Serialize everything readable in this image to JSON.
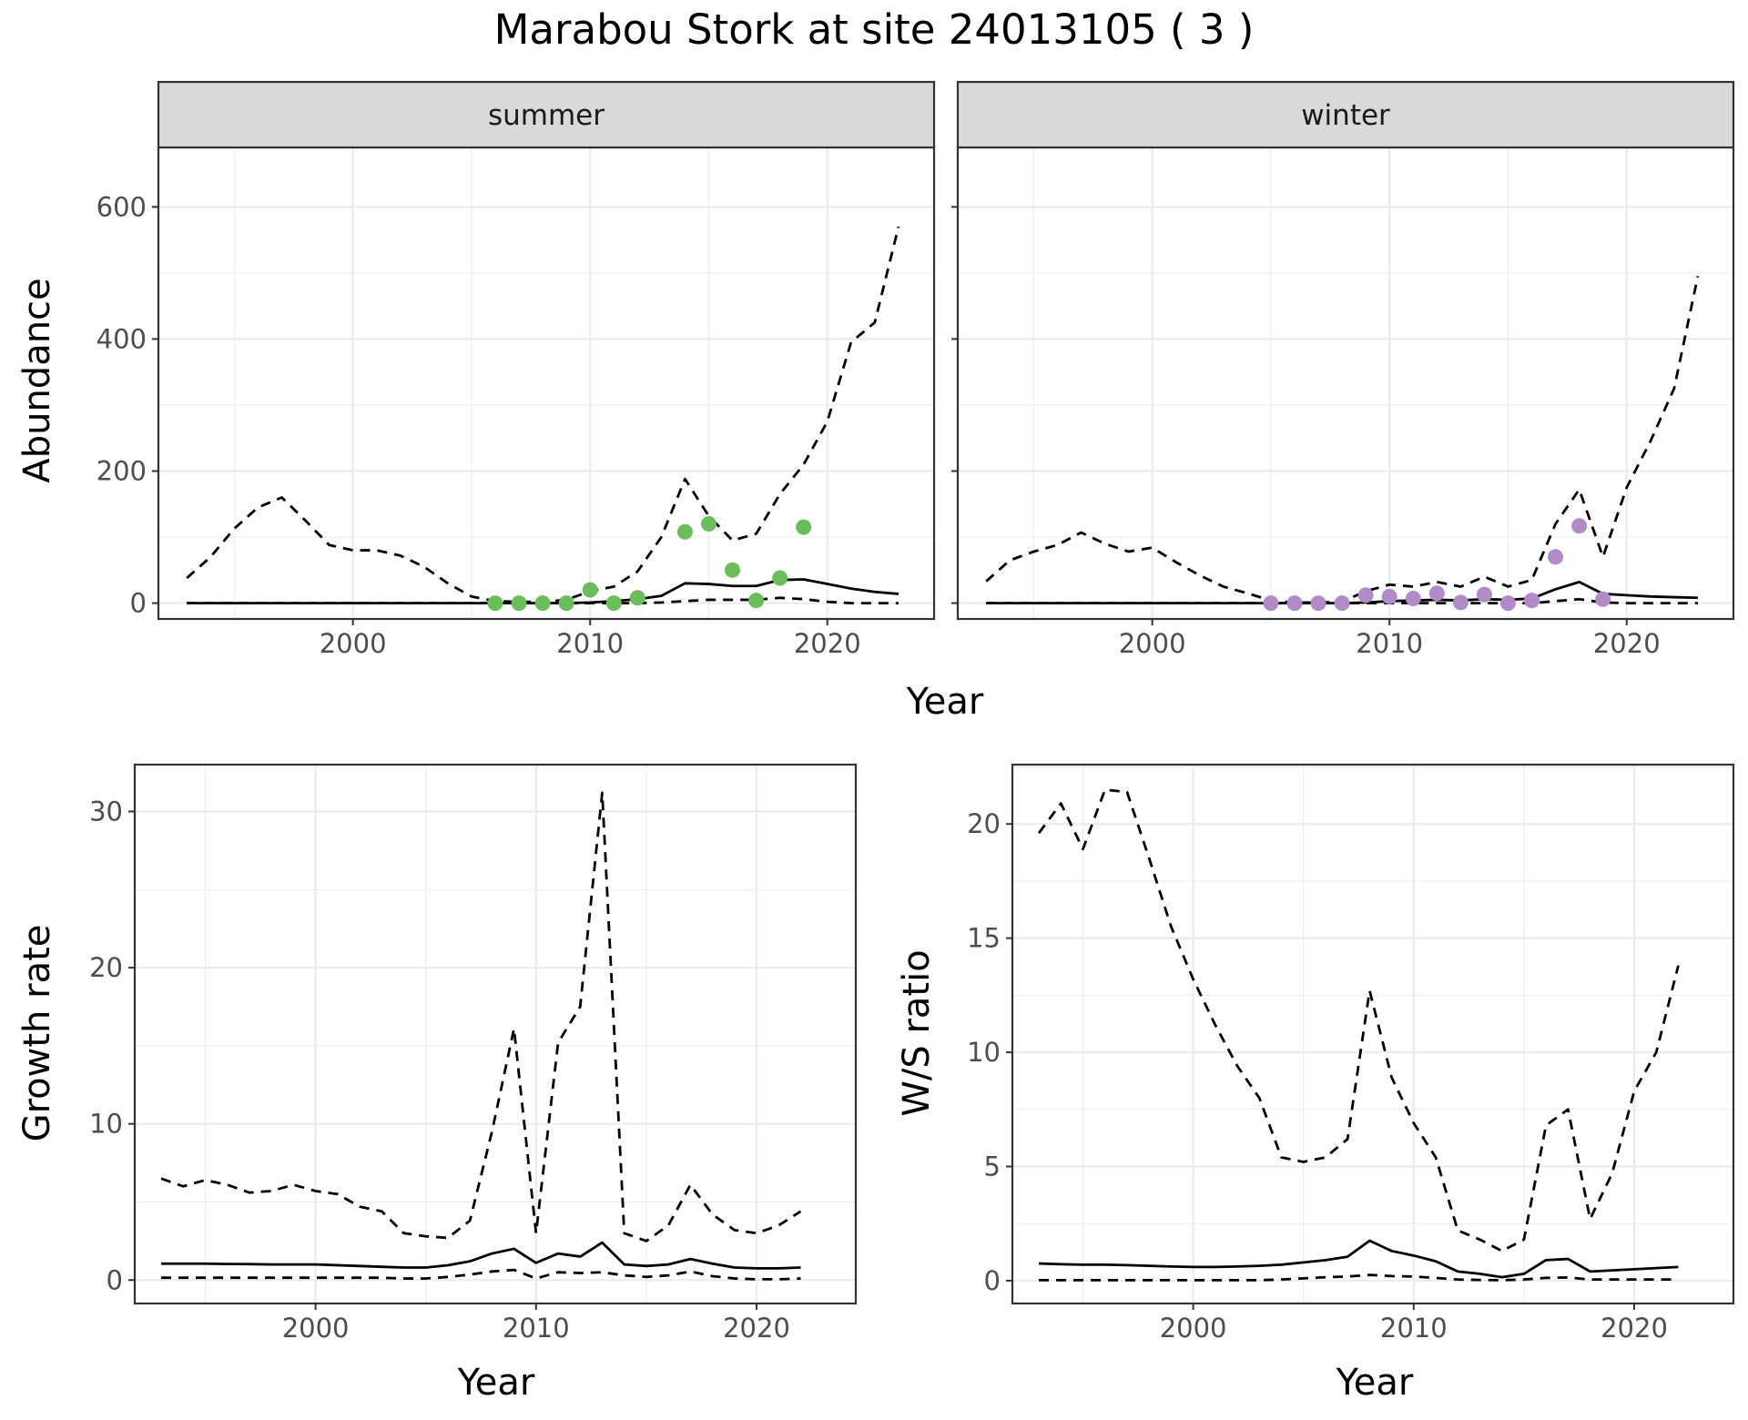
{
  "title": "Marabou Stork at site 24013105 ( 3 )",
  "colors": {
    "summer_points": "#6ABE5A",
    "winter_points": "#B08BC8",
    "lines": "#000000",
    "strip_fill": "#D9D9D9",
    "grid": "#EBEBEB"
  },
  "chart_data": [
    {
      "type": "line",
      "panel": "abundance",
      "title": "",
      "xlabel": "Year",
      "ylabel": "Abundance",
      "xlim": [
        1991.8,
        2024.5
      ],
      "ylim": [
        -24,
        690
      ],
      "x_ticks": [
        2000,
        2010,
        2020
      ],
      "y_ticks": [
        0,
        200,
        400,
        600
      ],
      "facets": [
        {
          "strip": "summer",
          "point_color": "#6ABE5A",
          "series": [
            {
              "style": "solid",
              "x": [
                1993,
                1994,
                1995,
                1996,
                1997,
                1998,
                1999,
                2000,
                2001,
                2002,
                2003,
                2004,
                2005,
                2006,
                2007,
                2008,
                2009,
                2010,
                2011,
                2012,
                2013,
                2014,
                2015,
                2016,
                2017,
                2018,
                2019,
                2020,
                2021,
                2022,
                2023
              ],
              "y": [
                0,
                0,
                0,
                0,
                0,
                0,
                0,
                0,
                0,
                0,
                0,
                0,
                0,
                0,
                0,
                0,
                0,
                1,
                3,
                6,
                11,
                30,
                29,
                26,
                26,
                35,
                36,
                29,
                22,
                17,
                14
              ]
            },
            {
              "style": "dashed-upper",
              "x": [
                1993,
                1994,
                1995,
                1996,
                1997,
                1998,
                1999,
                2000,
                2001,
                2002,
                2003,
                2004,
                2005,
                2006,
                2007,
                2008,
                2009,
                2010,
                2011,
                2012,
                2013,
                2014,
                2015,
                2016,
                2017,
                2018,
                2019,
                2020,
                2021,
                2022,
                2023
              ],
              "y": [
                38,
                70,
                113,
                145,
                160,
                125,
                88,
                80,
                80,
                72,
                55,
                30,
                10,
                3,
                2,
                2,
                5,
                18,
                25,
                48,
                100,
                188,
                132,
                95,
                105,
                165,
                210,
                275,
                395,
                425,
                570
              ]
            },
            {
              "style": "dashed-lower",
              "x": [
                1993,
                1994,
                1995,
                1996,
                1997,
                1998,
                1999,
                2000,
                2001,
                2002,
                2003,
                2004,
                2005,
                2006,
                2007,
                2008,
                2009,
                2010,
                2011,
                2012,
                2013,
                2014,
                2015,
                2016,
                2017,
                2018,
                2019,
                2020,
                2021,
                2022,
                2023
              ],
              "y": [
                0,
                0,
                0,
                0,
                0,
                0,
                0,
                0,
                0,
                0,
                0,
                0,
                0,
                0,
                0,
                0,
                0,
                0,
                0,
                0,
                1,
                3,
                5,
                5,
                5,
                8,
                6,
                2,
                0,
                0,
                0
              ]
            },
            {
              "style": "points",
              "x": [
                2006,
                2007,
                2008,
                2009,
                2010,
                2011,
                2012,
                2014,
                2015,
                2016,
                2017,
                2018,
                2019
              ],
              "y": [
                0,
                0,
                0,
                0,
                20,
                0,
                8,
                108,
                120,
                50,
                4,
                38,
                115
              ]
            }
          ]
        },
        {
          "strip": "winter",
          "point_color": "#B08BC8",
          "series": [
            {
              "style": "solid",
              "x": [
                1993,
                1994,
                1995,
                1996,
                1997,
                1998,
                1999,
                2000,
                2001,
                2002,
                2003,
                2004,
                2005,
                2006,
                2007,
                2008,
                2009,
                2010,
                2011,
                2012,
                2013,
                2014,
                2015,
                2016,
                2017,
                2018,
                2019,
                2020,
                2021,
                2022,
                2023
              ],
              "y": [
                0,
                0,
                0,
                0,
                0,
                0,
                0,
                0,
                0,
                0,
                0,
                0,
                0,
                0,
                0,
                0,
                1,
                3,
                4,
                5,
                4,
                6,
                5,
                7,
                21,
                32,
                14,
                12,
                10,
                9,
                8
              ]
            },
            {
              "style": "dashed-upper",
              "x": [
                1993,
                1994,
                1995,
                1996,
                1997,
                1998,
                1999,
                2000,
                2001,
                2002,
                2003,
                2004,
                2005,
                2006,
                2007,
                2008,
                2009,
                2010,
                2011,
                2012,
                2013,
                2014,
                2015,
                2016,
                2017,
                2018,
                2019,
                2020,
                2021,
                2022,
                2023
              ],
              "y": [
                33,
                65,
                78,
                88,
                107,
                90,
                78,
                84,
                62,
                42,
                25,
                15,
                4,
                1,
                1,
                2,
                18,
                28,
                25,
                32,
                25,
                40,
                25,
                35,
                120,
                172,
                70,
                175,
                245,
                325,
                495
              ]
            },
            {
              "style": "dashed-lower",
              "x": [
                1993,
                1994,
                1995,
                1996,
                1997,
                1998,
                1999,
                2000,
                2001,
                2002,
                2003,
                2004,
                2005,
                2006,
                2007,
                2008,
                2009,
                2010,
                2011,
                2012,
                2013,
                2014,
                2015,
                2016,
                2017,
                2018,
                2019,
                2020,
                2021,
                2022,
                2023
              ],
              "y": [
                0,
                0,
                0,
                0,
                0,
                0,
                0,
                0,
                0,
                0,
                0,
                0,
                0,
                0,
                0,
                0,
                0,
                0,
                0,
                0,
                0,
                0,
                0,
                0,
                3,
                6,
                1,
                0,
                0,
                0,
                0
              ]
            },
            {
              "style": "points",
              "x": [
                2005,
                2006,
                2007,
                2008,
                2009,
                2010,
                2011,
                2012,
                2013,
                2014,
                2015,
                2016,
                2017,
                2018,
                2019
              ],
              "y": [
                0,
                0,
                0,
                0,
                12,
                10,
                7,
                15,
                1,
                13,
                0,
                4,
                70,
                117,
                6
              ]
            }
          ]
        }
      ]
    },
    {
      "type": "line",
      "panel": "growth",
      "title": "",
      "xlabel": "Year",
      "ylabel": "Growth rate",
      "xlim": [
        1991.8,
        2024.5
      ],
      "ylim": [
        -1.5,
        33
      ],
      "x_ticks": [
        2000,
        2010,
        2020
      ],
      "y_ticks": [
        0,
        10,
        20,
        30
      ],
      "series": [
        {
          "style": "solid",
          "x": [
            1993,
            1994,
            1995,
            1996,
            1997,
            1998,
            1999,
            2000,
            2001,
            2002,
            2003,
            2004,
            2005,
            2006,
            2007,
            2008,
            2009,
            2010,
            2011,
            2012,
            2013,
            2014,
            2015,
            2016,
            2017,
            2018,
            2019,
            2020,
            2021,
            2022
          ],
          "y": [
            1.05,
            1.05,
            1.05,
            1.03,
            1.02,
            1.0,
            1.0,
            1.0,
            0.95,
            0.9,
            0.85,
            0.8,
            0.8,
            0.95,
            1.2,
            1.7,
            2.0,
            1.1,
            1.7,
            1.5,
            2.4,
            1.0,
            0.9,
            1.0,
            1.35,
            1.05,
            0.8,
            0.75,
            0.75,
            0.8
          ]
        },
        {
          "style": "dashed-upper",
          "x": [
            1993,
            1994,
            1995,
            1996,
            1997,
            1998,
            1999,
            2000,
            2001,
            2002,
            2003,
            2004,
            2005,
            2006,
            2007,
            2008,
            2009,
            2010,
            2011,
            2012,
            2013,
            2014,
            2015,
            2016,
            2017,
            2018,
            2019,
            2020,
            2021,
            2022
          ],
          "y": [
            6.5,
            6.0,
            6.4,
            6.1,
            5.6,
            5.7,
            6.1,
            5.7,
            5.5,
            4.7,
            4.4,
            3.0,
            2.8,
            2.7,
            3.8,
            9.5,
            16.1,
            3.0,
            15.2,
            17.5,
            31.2,
            3.0,
            2.5,
            3.5,
            6.1,
            4.2,
            3.2,
            3.0,
            3.5,
            4.4
          ]
        },
        {
          "style": "dashed-lower",
          "x": [
            1993,
            1994,
            1995,
            1996,
            1997,
            1998,
            1999,
            2000,
            2001,
            2002,
            2003,
            2004,
            2005,
            2006,
            2007,
            2008,
            2009,
            2010,
            2011,
            2012,
            2013,
            2014,
            2015,
            2016,
            2017,
            2018,
            2019,
            2020,
            2021,
            2022
          ],
          "y": [
            0.15,
            0.15,
            0.15,
            0.15,
            0.15,
            0.15,
            0.15,
            0.15,
            0.15,
            0.15,
            0.15,
            0.1,
            0.1,
            0.2,
            0.35,
            0.55,
            0.65,
            0.1,
            0.5,
            0.45,
            0.5,
            0.3,
            0.2,
            0.3,
            0.55,
            0.25,
            0.1,
            0.05,
            0.05,
            0.1
          ]
        }
      ]
    },
    {
      "type": "line",
      "panel": "ratio",
      "title": "",
      "xlabel": "Year",
      "ylabel": "W/S ratio",
      "xlim": [
        1991.8,
        2024.5
      ],
      "ylim": [
        -1.0,
        22.6
      ],
      "x_ticks": [
        2000,
        2010,
        2020
      ],
      "y_ticks": [
        0,
        5,
        10,
        15,
        20
      ],
      "series": [
        {
          "style": "solid",
          "x": [
            1993,
            1994,
            1995,
            1996,
            1997,
            1998,
            1999,
            2000,
            2001,
            2002,
            2003,
            2004,
            2005,
            2006,
            2007,
            2008,
            2009,
            2010,
            2011,
            2012,
            2013,
            2014,
            2015,
            2016,
            2017,
            2018,
            2019,
            2020,
            2021,
            2022
          ],
          "y": [
            0.75,
            0.72,
            0.7,
            0.7,
            0.68,
            0.65,
            0.62,
            0.6,
            0.6,
            0.62,
            0.65,
            0.7,
            0.8,
            0.9,
            1.05,
            1.75,
            1.3,
            1.1,
            0.85,
            0.4,
            0.3,
            0.15,
            0.3,
            0.9,
            0.95,
            0.4,
            0.45,
            0.5,
            0.55,
            0.6
          ]
        },
        {
          "style": "dashed-upper",
          "x": [
            1993,
            1994,
            1995,
            1996,
            1997,
            1998,
            1999,
            2000,
            2001,
            2002,
            2003,
            2004,
            2005,
            2006,
            2007,
            2008,
            2009,
            2010,
            2011,
            2012,
            2013,
            2014,
            2015,
            2016,
            2017,
            2018,
            2019,
            2020,
            2021,
            2022
          ],
          "y": [
            19.6,
            20.9,
            18.9,
            21.5,
            21.4,
            18.5,
            15.5,
            13.2,
            11.2,
            9.4,
            8.0,
            5.4,
            5.2,
            5.4,
            6.2,
            12.7,
            8.9,
            6.9,
            5.4,
            2.2,
            1.8,
            1.3,
            1.8,
            6.8,
            7.5,
            2.7,
            4.7,
            8.3,
            10.0,
            13.8
          ]
        },
        {
          "style": "dashed-lower",
          "x": [
            1993,
            1994,
            1995,
            1996,
            1997,
            1998,
            1999,
            2000,
            2001,
            2002,
            2003,
            2004,
            2005,
            2006,
            2007,
            2008,
            2009,
            2010,
            2011,
            2012,
            2013,
            2014,
            2015,
            2016,
            2017,
            2018,
            2019,
            2020,
            2021,
            2022
          ],
          "y": [
            0.02,
            0.02,
            0.02,
            0.02,
            0.02,
            0.02,
            0.02,
            0.02,
            0.02,
            0.02,
            0.02,
            0.05,
            0.1,
            0.15,
            0.18,
            0.25,
            0.2,
            0.18,
            0.12,
            0.05,
            0.03,
            0.02,
            0.05,
            0.12,
            0.14,
            0.05,
            0.05,
            0.05,
            0.05,
            0.05
          ]
        }
      ]
    }
  ]
}
